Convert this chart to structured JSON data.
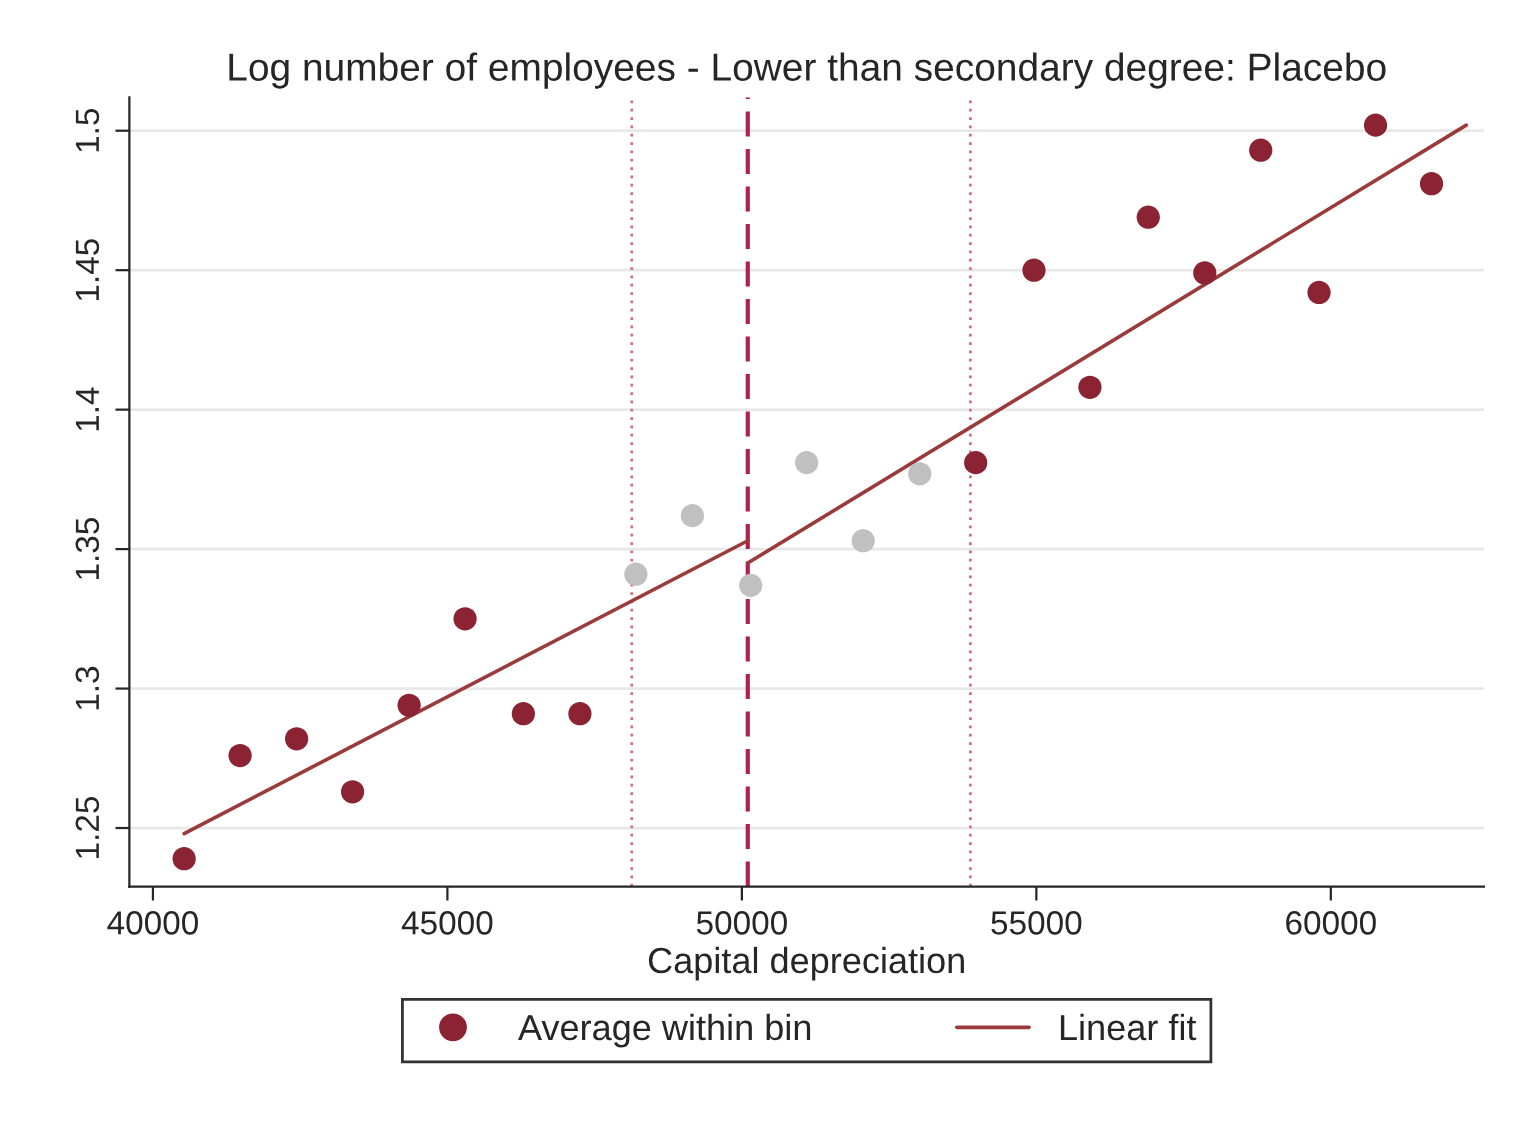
{
  "chart_data": {
    "type": "scatter",
    "title": "Log number of employees - Lower than secondary degree: Placebo",
    "xlabel": "Capital depreciation",
    "series": [
      {
        "name": "Average within bin",
        "color": "#8b2332",
        "x": [
          40530,
          41480,
          42440,
          43390,
          44350,
          45300,
          46290,
          47250,
          53970,
          54960,
          55910,
          56900,
          57860,
          58810,
          59800,
          60760,
          61710
        ],
        "values": [
          1.239,
          1.276,
          1.282,
          1.263,
          1.294,
          1.325,
          1.291,
          1.291,
          1.381,
          1.45,
          1.408,
          1.469,
          1.449,
          1.493,
          1.442,
          1.502,
          1.481
        ]
      },
      {
        "color": "#c0c0c0",
        "x": [
          48200,
          49160,
          50150,
          51100,
          52060,
          53020
        ],
        "values": [
          1.341,
          1.362,
          1.337,
          1.381,
          1.353,
          1.377
        ]
      },
      {
        "name": "Linear fit",
        "type": "line",
        "marker": "none",
        "color": "#9b3a3a",
        "x": [
          40530,
          50100
        ],
        "values": [
          1.248,
          1.353
        ]
      },
      {
        "type": "line",
        "marker": "none",
        "color": "#9b3a3a",
        "x": [
          50100,
          62300
        ],
        "values": [
          1.345,
          1.502
        ]
      }
    ],
    "xlim": [
      39600,
      62600
    ],
    "xticks": [
      40000,
      45000,
      50000,
      55000,
      60000
    ],
    "ylim": [
      1.229,
      1.512
    ],
    "yticks": [
      1.25,
      1.3,
      1.35,
      1.4,
      1.45,
      1.5
    ],
    "ref_lines": [
      {
        "axis": "x",
        "value": 50100,
        "color": "#b0204a",
        "line_style": "dashed"
      },
      {
        "axis": "x",
        "value": 48130,
        "color": "#d07080",
        "line_style": "dotted"
      },
      {
        "axis": "x",
        "value": 53880,
        "color": "#d07080",
        "line_style": "dotted"
      }
    ],
    "grid": "y",
    "legend": "bottom",
    "marker": "circle"
  }
}
